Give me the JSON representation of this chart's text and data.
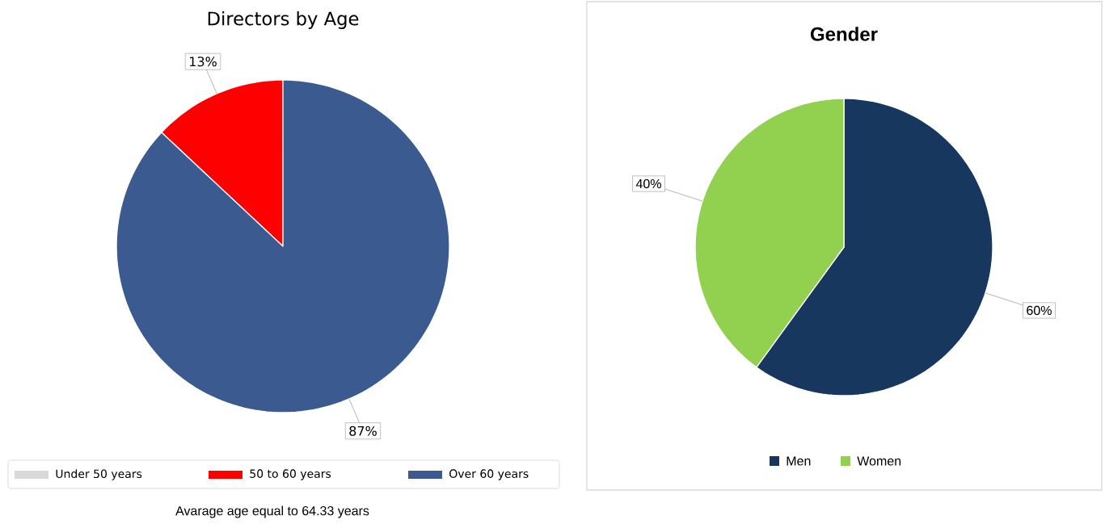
{
  "chart_data": [
    {
      "type": "pie",
      "title": "Directors by Age",
      "categories": [
        "Under 50 years",
        "50 to 60 years",
        "Over 60 years"
      ],
      "values": [
        0,
        13,
        87
      ],
      "colors": [
        "#d9d9d9",
        "#ff0000",
        "#3b5a8f"
      ],
      "value_labels": [
        null,
        "13%",
        "87%"
      ],
      "legend": "bottom",
      "annotations": [
        "Avarage age equal to 64.33 years"
      ]
    },
    {
      "type": "pie",
      "title": "Gender",
      "categories": [
        "Men",
        "Women"
      ],
      "values": [
        60,
        40
      ],
      "colors": [
        "#17375e",
        "#92d050"
      ],
      "value_labels": [
        "60%",
        "40%"
      ],
      "legend": "bottom"
    }
  ]
}
